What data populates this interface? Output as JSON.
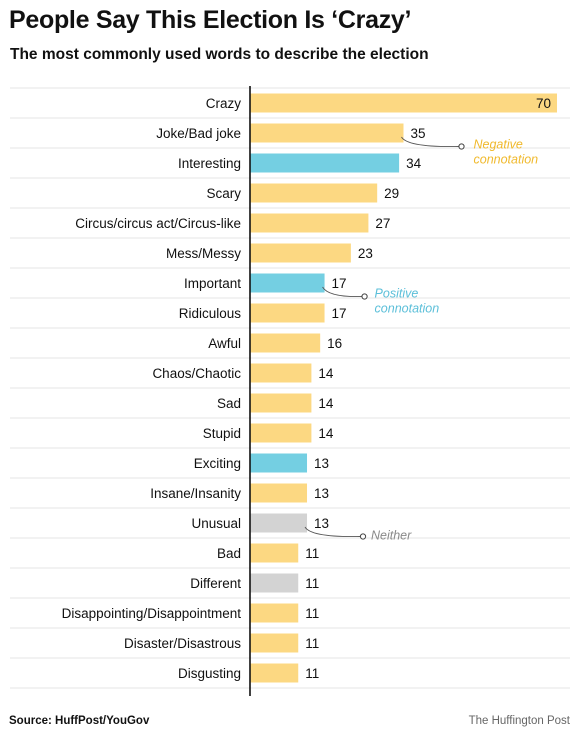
{
  "header": {
    "title": "People Say This Election Is ‘Crazy’",
    "subtitle": "The most commonly used words to describe the election"
  },
  "footer": {
    "source": "Source: HuffPost/YouGov",
    "brand": "The Huffington Post"
  },
  "colors": {
    "negative": "#fcd882",
    "positive": "#74cfe2",
    "neither": "#d3d3d3",
    "negative_label": "#f0b92c",
    "positive_label": "#5bbfd9",
    "neither_label": "#8a8a8a"
  },
  "chart_data": {
    "type": "bar",
    "orientation": "horizontal",
    "title": "People Say This Election Is ‘Crazy’",
    "subtitle": "The most commonly used words to describe the election",
    "xlabel": "",
    "ylabel": "",
    "xlim": [
      0,
      70
    ],
    "grid": false,
    "categories": [
      "Crazy",
      "Joke/Bad joke",
      "Interesting",
      "Scary",
      "Circus/circus act/Circus-like",
      "Mess/Messy",
      "Important",
      "Ridiculous",
      "Awful",
      "Chaos/Chaotic",
      "Sad",
      "Stupid",
      "Exciting",
      "Insane/Insanity",
      "Unusual",
      "Bad",
      "Different",
      "Disappointing/Disappointment",
      "Disaster/Disastrous",
      "Disgusting"
    ],
    "values": [
      70,
      35,
      34,
      29,
      27,
      23,
      17,
      17,
      16,
      14,
      14,
      14,
      13,
      13,
      13,
      11,
      11,
      11,
      11,
      11
    ],
    "connotation": [
      "negative",
      "negative",
      "positive",
      "negative",
      "negative",
      "negative",
      "positive",
      "negative",
      "negative",
      "negative",
      "negative",
      "negative",
      "positive",
      "negative",
      "neither",
      "negative",
      "neither",
      "negative",
      "negative",
      "negative"
    ],
    "annotations": [
      {
        "text": [
          "Negative",
          "connotation"
        ],
        "category_index": 1,
        "kind": "negative"
      },
      {
        "text": [
          "Positive",
          "connotation"
        ],
        "category_index": 6,
        "kind": "positive"
      },
      {
        "text": [
          "Neither"
        ],
        "category_index": 14,
        "kind": "neither"
      }
    ]
  }
}
